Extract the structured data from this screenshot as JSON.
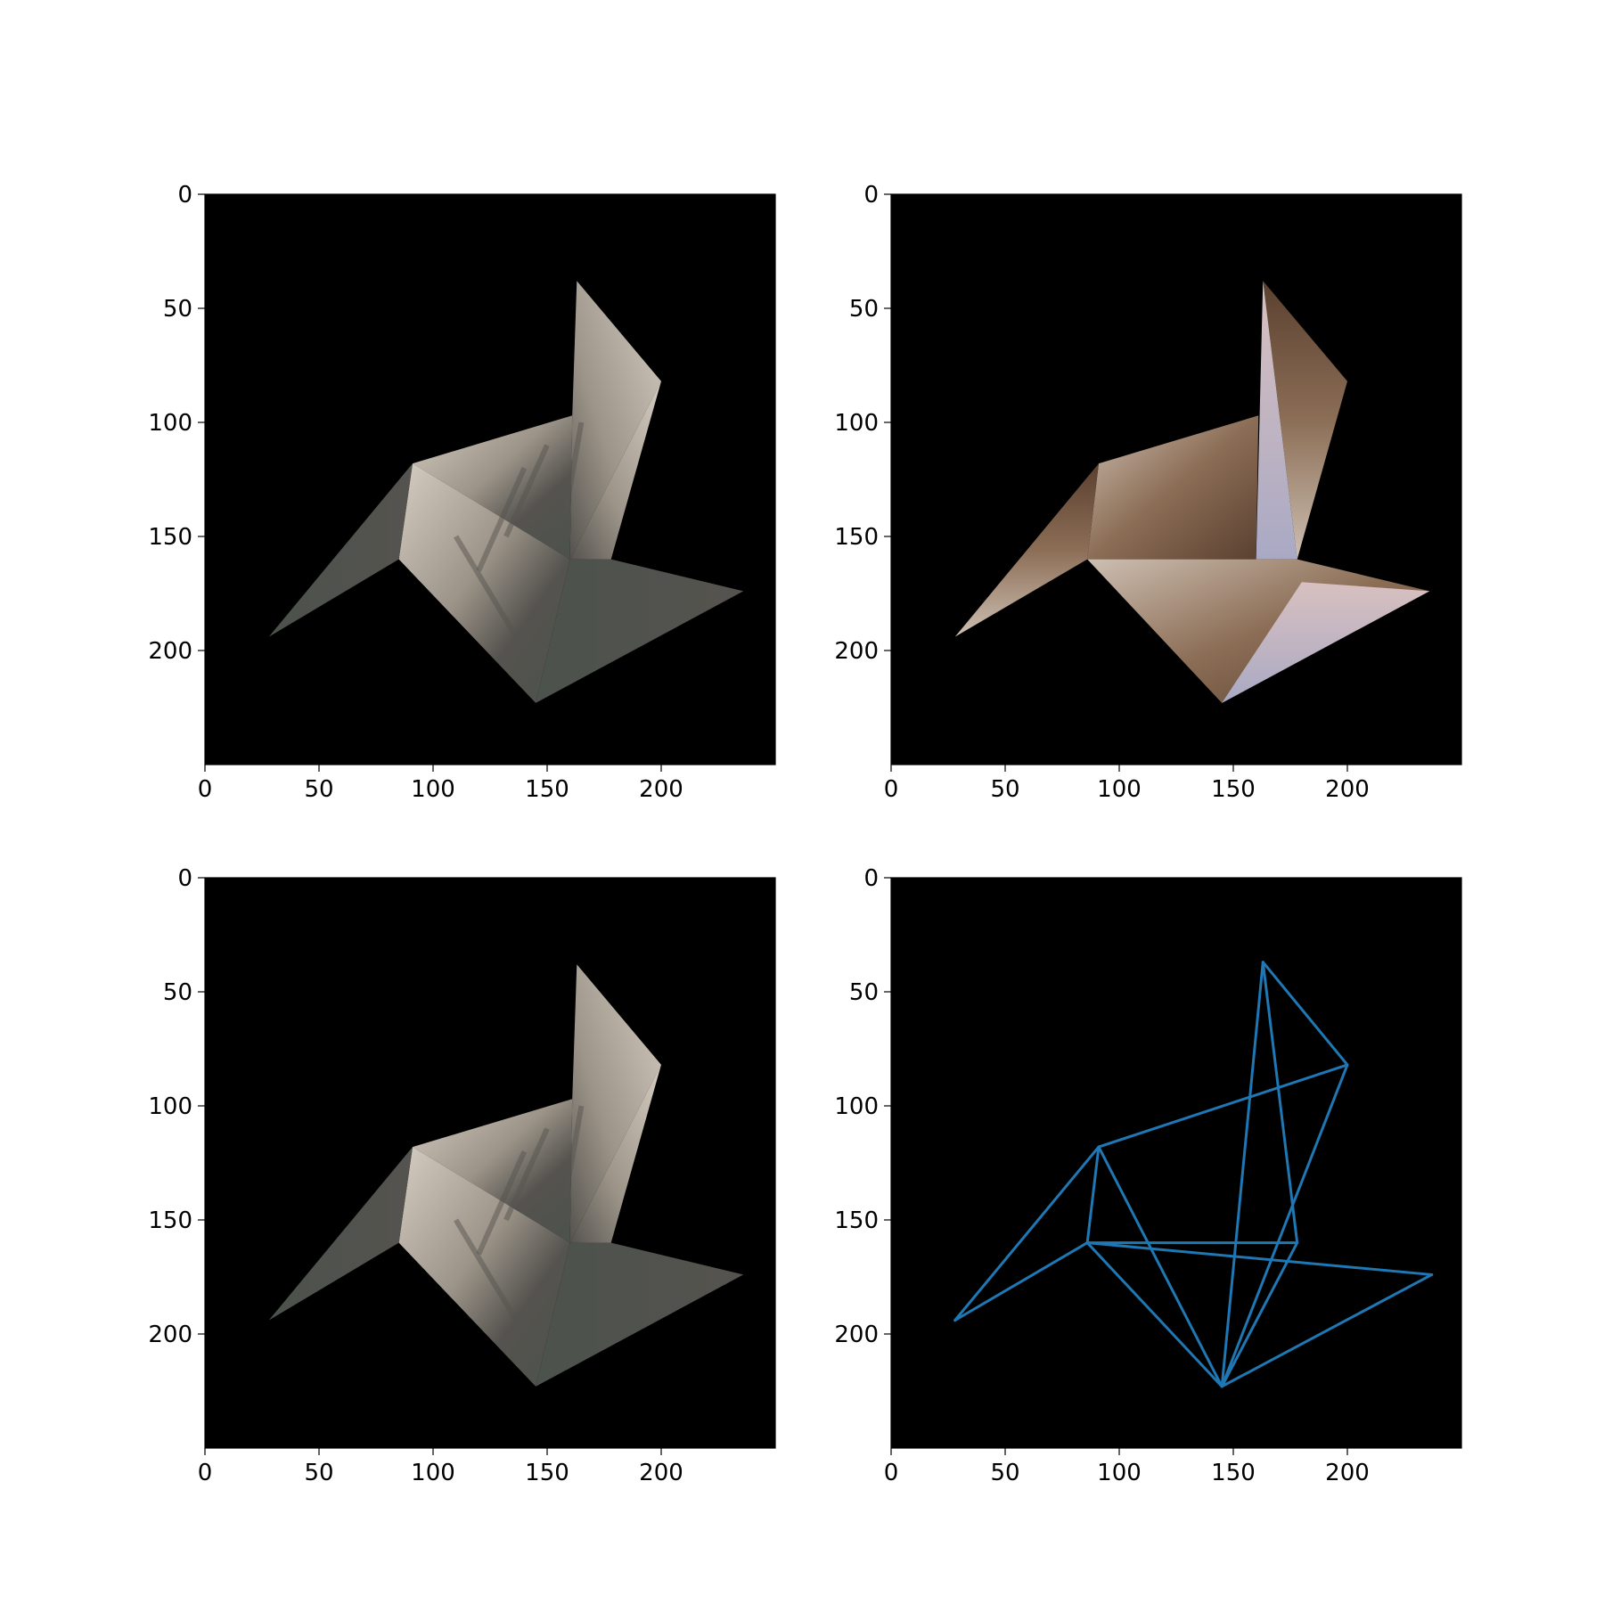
{
  "figure": {
    "colors": {
      "background": "#000000",
      "wireframe": "#1f77b4",
      "granite_light": "#d6cdc2",
      "granite_mid": "#9c9488",
      "granite_dark": "#55534f",
      "forest": "#4c524c",
      "sky": "#a9a9c4",
      "warped_brown": "#8c6e56",
      "warped_light": "#cdbfb2",
      "warped_dark": "#5a4030",
      "warped_pink": "#d8c0c0"
    }
  },
  "chart_data": [
    {
      "type": "image",
      "panel": "top-left",
      "xlim": [
        0,
        250
      ],
      "ylim": [
        250,
        0
      ],
      "xticks": [
        "0",
        "50",
        "100",
        "150",
        "200"
      ],
      "yticks": [
        "0",
        "50",
        "100",
        "150",
        "200"
      ],
      "content": "triangulated mesh textured with granite cliff photo",
      "vertices": [
        [
          163,
          38
        ],
        [
          200,
          82
        ],
        [
          161,
          97
        ],
        [
          91,
          118
        ],
        [
          28,
          194
        ],
        [
          85,
          160
        ],
        [
          145,
          223
        ],
        [
          236,
          174
        ],
        [
          178,
          160
        ],
        [
          160,
          160
        ]
      ]
    },
    {
      "type": "image",
      "panel": "top-right",
      "xlim": [
        0,
        250
      ],
      "ylim": [
        250,
        0
      ],
      "xticks": [
        "0",
        "50",
        "100",
        "150",
        "200"
      ],
      "yticks": [
        "0",
        "50",
        "100",
        "150",
        "200"
      ],
      "content": "warped textured mesh",
      "vertices": [
        [
          163,
          38
        ],
        [
          200,
          82
        ],
        [
          161,
          97
        ],
        [
          91,
          118
        ],
        [
          28,
          194
        ],
        [
          85,
          160
        ],
        [
          145,
          223
        ],
        [
          236,
          174
        ],
        [
          178,
          160
        ],
        [
          160,
          160
        ]
      ]
    },
    {
      "type": "image",
      "panel": "bottom-left",
      "xlim": [
        0,
        250
      ],
      "ylim": [
        250,
        0
      ],
      "xticks": [
        "0",
        "50",
        "100",
        "150",
        "200"
      ],
      "yticks": [
        "0",
        "50",
        "100",
        "150",
        "200"
      ],
      "content": "triangulated mesh textured with granite cliff photo",
      "vertices": [
        [
          163,
          38
        ],
        [
          200,
          82
        ],
        [
          161,
          97
        ],
        [
          91,
          118
        ],
        [
          28,
          194
        ],
        [
          85,
          160
        ],
        [
          145,
          223
        ],
        [
          236,
          174
        ],
        [
          178,
          160
        ],
        [
          160,
          160
        ]
      ]
    },
    {
      "type": "line",
      "panel": "bottom-right",
      "xlim": [
        0,
        250
      ],
      "ylim": [
        250,
        0
      ],
      "xticks": [
        "0",
        "50",
        "100",
        "150",
        "200"
      ],
      "yticks": [
        "0",
        "50",
        "100",
        "150",
        "200"
      ],
      "content": "triangle mesh wireframe",
      "vertices": [
        [
          163,
          37
        ],
        [
          200,
          82
        ],
        [
          91,
          118
        ],
        [
          86,
          160
        ],
        [
          28,
          194
        ],
        [
          145,
          223
        ],
        [
          178,
          160
        ],
        [
          237,
          174
        ]
      ],
      "edges": [
        [
          0,
          1
        ],
        [
          0,
          6
        ],
        [
          0,
          5
        ],
        [
          1,
          2
        ],
        [
          1,
          5
        ],
        [
          2,
          3
        ],
        [
          2,
          4
        ],
        [
          2,
          5
        ],
        [
          3,
          4
        ],
        [
          3,
          6
        ],
        [
          3,
          5
        ],
        [
          3,
          7
        ],
        [
          6,
          5
        ],
        [
          5,
          7
        ]
      ]
    }
  ]
}
